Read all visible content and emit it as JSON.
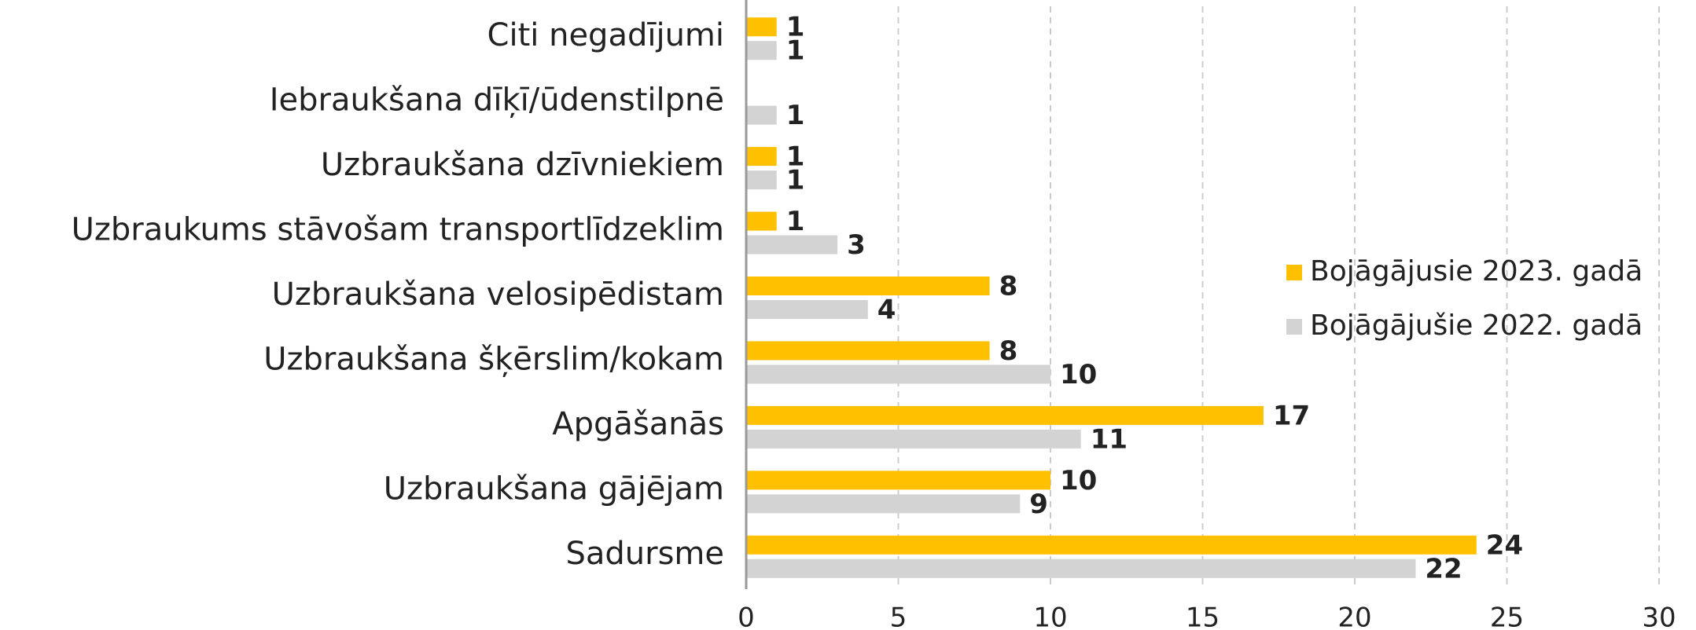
{
  "chart_data": {
    "type": "bar",
    "orientation": "horizontal",
    "categories": [
      "Citi negadījumi",
      "Iebraukšana dīķī/ūdenstilpnē",
      "Uzbraukšana dzīvniekiem",
      "Uzbraukums stāvošam transportlīdzeklim",
      "Uzbraukšana velosipēdistam",
      "Uzbraukšana šķērslim/kokam",
      "Apgāšanās",
      "Uzbraukšana gājējam",
      "Sadursme"
    ],
    "series": [
      {
        "name": "Bojāgājusie 2023. gadā",
        "color": "#FFC000",
        "values": [
          1,
          null,
          1,
          1,
          8,
          8,
          17,
          10,
          24
        ]
      },
      {
        "name": "Bojāgājušie 2022. gadā",
        "color": "#D3D3D3",
        "values": [
          1,
          1,
          1,
          3,
          4,
          10,
          11,
          9,
          22
        ]
      }
    ],
    "xlim": [
      0,
      30
    ],
    "xticks": [
      0,
      5,
      10,
      15,
      20,
      25,
      30
    ],
    "grid": true,
    "legend": "right"
  }
}
